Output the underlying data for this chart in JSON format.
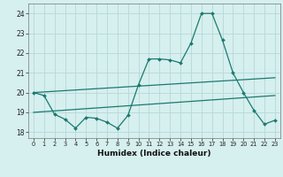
{
  "title": "",
  "xlabel": "Humidex (Indice chaleur)",
  "ylabel": "",
  "bg_color": "#d6efef",
  "grid_color": "#b8d8d8",
  "line_color": "#1a7a6e",
  "xlim": [
    -0.5,
    23.5
  ],
  "ylim": [
    17.7,
    24.5
  ],
  "yticks": [
    18,
    19,
    20,
    21,
    22,
    23,
    24
  ],
  "xticks": [
    0,
    1,
    2,
    3,
    4,
    5,
    6,
    7,
    8,
    9,
    10,
    11,
    12,
    13,
    14,
    15,
    16,
    17,
    18,
    19,
    20,
    21,
    22,
    23
  ],
  "line1_x": [
    0,
    1,
    2,
    3,
    4,
    5,
    6,
    7,
    8,
    9,
    10,
    11,
    12,
    13,
    14,
    15,
    16,
    17,
    18,
    19,
    20,
    21,
    22,
    23
  ],
  "line1_y": [
    20.0,
    19.85,
    18.9,
    18.65,
    18.2,
    18.75,
    18.7,
    18.5,
    18.2,
    18.85,
    20.4,
    21.7,
    21.7,
    21.65,
    21.5,
    22.5,
    24.0,
    24.0,
    22.65,
    21.0,
    20.0,
    19.1,
    18.4,
    18.6
  ],
  "line2_x": [
    0,
    23
  ],
  "line2_y": [
    20.0,
    20.75
  ],
  "line3_x": [
    0,
    23
  ],
  "line3_y": [
    19.0,
    19.85
  ]
}
